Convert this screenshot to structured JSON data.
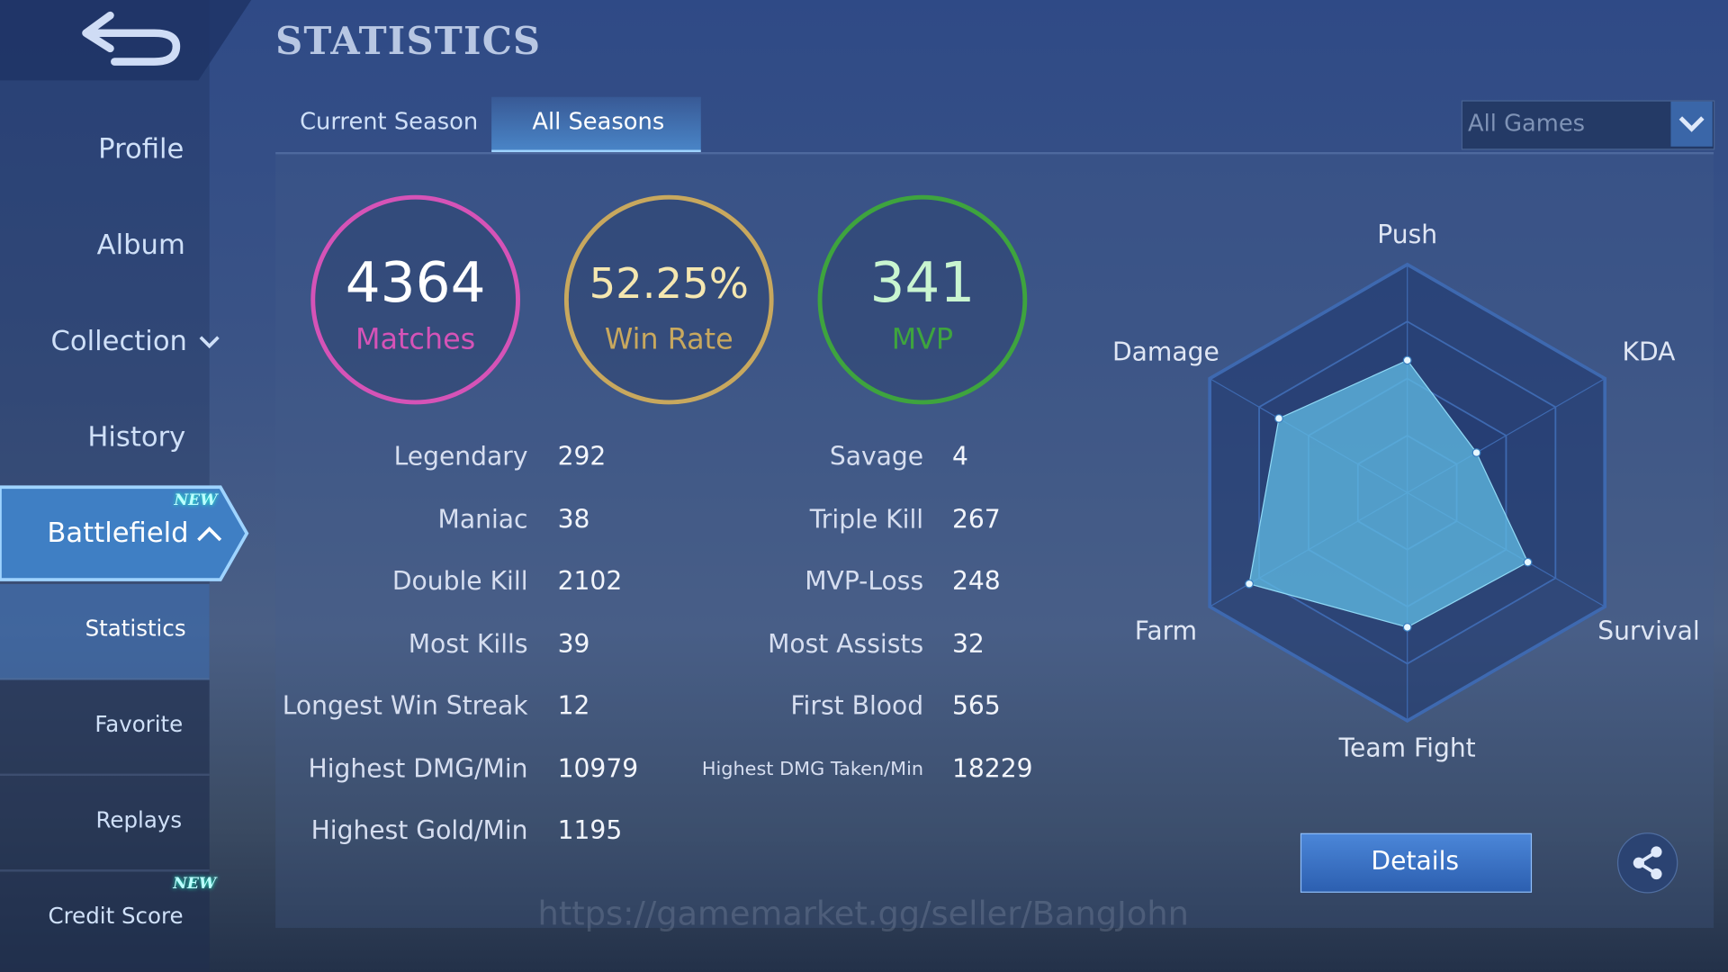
{
  "header": {
    "title": "STATISTICS"
  },
  "sidebar": {
    "items": [
      "Profile",
      "Album",
      "Collection",
      "History",
      "Battlefield",
      "Statistics",
      "Favorite",
      "Replays",
      "Credit Score"
    ],
    "badge": "NEW"
  },
  "tabs": [
    "Current Season",
    "All Seasons"
  ],
  "filter": "All Games",
  "summary": [
    {
      "value": 4364,
      "label": "Matches",
      "color": "#d553b7"
    },
    {
      "value": "52.25%",
      "label": "Win Rate",
      "color": "#c8a85e"
    },
    {
      "value": 341,
      "label": "MVP",
      "color": "#3ea43e"
    }
  ],
  "stats": {
    "left": [
      {
        "label": "Legendary",
        "value": 292
      },
      {
        "label": "Maniac",
        "value": 38
      },
      {
        "label": "Double Kill",
        "value": 2102
      },
      {
        "label": "Most Kills",
        "value": 39
      },
      {
        "label": "Longest Win Streak",
        "value": 12
      },
      {
        "label": "Highest DMG/Min",
        "value": 10979
      },
      {
        "label": "Highest Gold/Min",
        "value": 1195
      }
    ],
    "right": [
      {
        "label": "Savage",
        "value": 4
      },
      {
        "label": "Triple Kill",
        "value": 267
      },
      {
        "label": "MVP-Loss",
        "value": 248
      },
      {
        "label": "Most Assists",
        "value": 32
      },
      {
        "label": "First Blood",
        "value": 565
      },
      {
        "label": "Highest DMG Taken/Min",
        "value": 18229
      }
    ]
  },
  "radar": {
    "axes": [
      "Push",
      "KDA",
      "Survival",
      "Team Fight",
      "Farm",
      "Damage"
    ],
    "values": [
      58,
      35,
      61,
      59,
      80,
      65
    ],
    "rlim": [
      0,
      100
    ],
    "rings": [
      25,
      50,
      75,
      100
    ]
  },
  "details_button": "Details",
  "watermark": "https://gamemarket.gg/seller/BangJohn"
}
